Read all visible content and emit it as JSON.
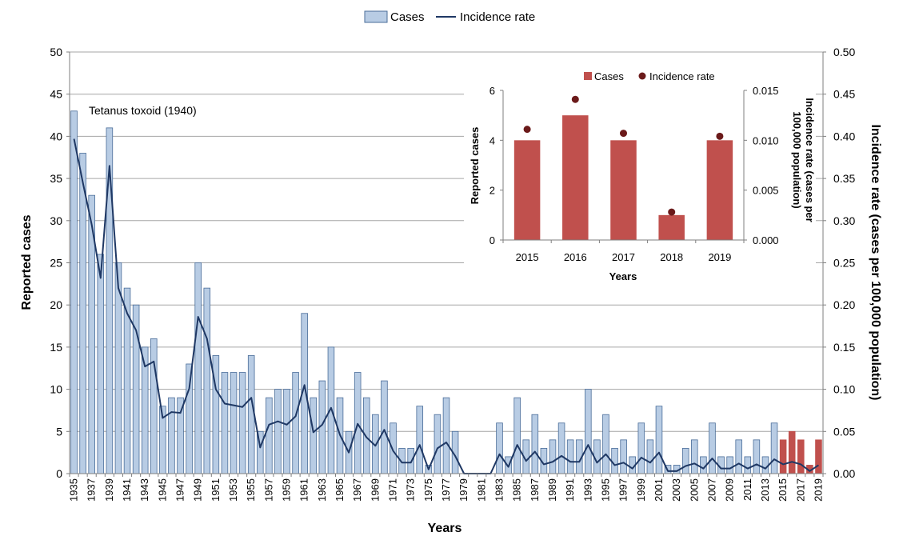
{
  "legend": {
    "cases": "Cases",
    "rate": "Incidence rate"
  },
  "annotation": "Tetanus toxoid (1940)",
  "colors": {
    "bar": "#b8cce4",
    "bar_stroke": "#4a6d99",
    "recent_bar": "#c0504d",
    "line": "#1f3864",
    "dot": "#6b1a1a"
  },
  "chart_data": [
    {
      "type": "bar",
      "xlabel": "Years",
      "ylabel": "Reported cases",
      "y2label": "Incidence rate (cases per 100,000 population)",
      "ylim": [
        0,
        50
      ],
      "y2lim": [
        0,
        0.5
      ],
      "yticks": [
        "0",
        "5",
        "10",
        "15",
        "20",
        "25",
        "30",
        "35",
        "40",
        "45",
        "50"
      ],
      "y2ticks": [
        "0.00",
        "0.05",
        "0.10",
        "0.15",
        "0.20",
        "0.25",
        "0.30",
        "0.35",
        "0.40",
        "0.45",
        "0.50"
      ],
      "grid": true,
      "legend_position": "top",
      "categories": [
        1935,
        1936,
        1937,
        1938,
        1939,
        1940,
        1941,
        1942,
        1943,
        1944,
        1945,
        1946,
        1947,
        1948,
        1949,
        1950,
        1951,
        1952,
        1953,
        1954,
        1955,
        1956,
        1957,
        1958,
        1959,
        1960,
        1961,
        1962,
        1963,
        1964,
        1965,
        1966,
        1967,
        1968,
        1969,
        1970,
        1971,
        1972,
        1973,
        1974,
        1975,
        1976,
        1977,
        1978,
        1979,
        1980,
        1981,
        1982,
        1983,
        1984,
        1985,
        1986,
        1987,
        1988,
        1989,
        1990,
        1991,
        1992,
        1993,
        1994,
        1995,
        1996,
        1997,
        1998,
        1999,
        2000,
        2001,
        2002,
        2003,
        2004,
        2005,
        2006,
        2007,
        2008,
        2009,
        2010,
        2011,
        2012,
        2013,
        2014,
        2015,
        2016,
        2017,
        2018,
        2019
      ],
      "series": [
        {
          "name": "Cases",
          "values": [
            43,
            38,
            33,
            26,
            41,
            25,
            22,
            20,
            15,
            16,
            8,
            9,
            9,
            13,
            25,
            22,
            14,
            12,
            12,
            12,
            14,
            5,
            9,
            10,
            10,
            12,
            19,
            9,
            11,
            15,
            9,
            5,
            12,
            9,
            7,
            11,
            6,
            3,
            3,
            8,
            1,
            7,
            9,
            5,
            0,
            0,
            0,
            0,
            6,
            2,
            9,
            4,
            7,
            3,
            4,
            6,
            4,
            4,
            10,
            4,
            7,
            3,
            4,
            2,
            6,
            4,
            8,
            1,
            1,
            3,
            4,
            2,
            6,
            2,
            2,
            4,
            2,
            4,
            2,
            6,
            4,
            5,
            4,
            1,
            4
          ]
        },
        {
          "name": "Incidence rate",
          "values": [
            0.397,
            0.345,
            0.295,
            0.232,
            0.365,
            0.22,
            0.19,
            0.17,
            0.127,
            0.133,
            0.066,
            0.073,
            0.072,
            0.101,
            0.186,
            0.16,
            0.1,
            0.083,
            0.081,
            0.079,
            0.09,
            0.031,
            0.058,
            0.062,
            0.058,
            0.068,
            0.105,
            0.049,
            0.058,
            0.078,
            0.046,
            0.025,
            0.059,
            0.043,
            0.033,
            0.052,
            0.027,
            0.013,
            0.013,
            0.034,
            0.005,
            0.03,
            0.037,
            0.021,
            0,
            0,
            0,
            0,
            0.023,
            0.008,
            0.034,
            0.015,
            0.026,
            0.011,
            0.014,
            0.021,
            0.014,
            0.014,
            0.034,
            0.013,
            0.023,
            0.01,
            0.013,
            0.006,
            0.019,
            0.013,
            0.025,
            0.003,
            0.003,
            0.009,
            0.012,
            0.006,
            0.018,
            0.006,
            0.006,
            0.012,
            0.006,
            0.011,
            0.006,
            0.017,
            0.011,
            0.014,
            0.011,
            0.003,
            0.01
          ]
        }
      ]
    },
    {
      "type": "bar",
      "xlabel": "Years",
      "ylabel": "Reported cases",
      "y2label": "Incidence rate (cases per 100,000 population)",
      "ylim": [
        0,
        6
      ],
      "y2lim": [
        0,
        0.015
      ],
      "yticks": [
        "0",
        "2",
        "4",
        "6"
      ],
      "y2ticks": [
        "0.000",
        "0.005",
        "0.010",
        "0.015"
      ],
      "grid": false,
      "legend_position": "top",
      "categories": [
        "2015",
        "2016",
        "2017",
        "2018",
        "2019"
      ],
      "series": [
        {
          "name": "Cases",
          "values": [
            4,
            5,
            4,
            1,
            4
          ]
        },
        {
          "name": "Incidence rate",
          "values": [
            0.0111,
            0.0141,
            0.0107,
            0.0028,
            0.0104
          ]
        }
      ]
    }
  ]
}
